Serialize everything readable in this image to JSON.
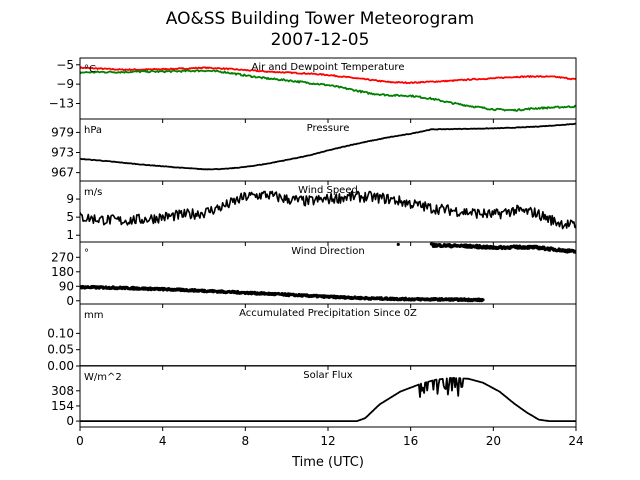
{
  "figure": {
    "title_line1": "AO&SS Building Tower Meteorogram",
    "title_line2": "2007-12-05",
    "xlabel": "Time (UTC)",
    "xlim": [
      0,
      24
    ],
    "xticks": [
      0,
      4,
      8,
      12,
      16,
      20,
      24
    ],
    "xtick_labels": [
      "0",
      "4",
      "8",
      "12",
      "16",
      "20",
      "24"
    ]
  },
  "chart_data": [
    {
      "type": "line",
      "title": "Air and Dewpoint Temperature",
      "unit": "°C",
      "ylim": [
        -16.2,
        -3.6
      ],
      "yticks": [
        -5,
        -9,
        -13
      ],
      "ytick_labels": [
        "−5",
        "−9",
        "−13"
      ],
      "series": [
        {
          "color": "#ff0000",
          "jitter": 0.12,
          "x": [
            0,
            1,
            2,
            3,
            4,
            5,
            6,
            7,
            8,
            9,
            10,
            11,
            12,
            13,
            14,
            15,
            16,
            17,
            18,
            19,
            20,
            21,
            22,
            23,
            24
          ],
          "y": [
            -5.6,
            -5.8,
            -6.0,
            -6.0,
            -5.9,
            -5.8,
            -5.6,
            -5.8,
            -6.1,
            -6.4,
            -6.6,
            -6.8,
            -7.1,
            -7.6,
            -8.1,
            -8.6,
            -8.7,
            -8.5,
            -8.3,
            -8.0,
            -7.8,
            -7.5,
            -7.4,
            -7.5,
            -8.0
          ]
        },
        {
          "color": "#008000",
          "jitter": 0.18,
          "x": [
            0,
            1,
            2,
            3,
            4,
            5,
            6,
            7,
            8,
            9,
            10,
            11,
            12,
            13,
            14,
            15,
            16,
            17,
            18,
            19,
            20,
            21,
            22,
            23,
            24
          ],
          "y": [
            -6.6,
            -6.5,
            -6.5,
            -6.4,
            -6.4,
            -6.3,
            -6.2,
            -6.5,
            -7.2,
            -7.8,
            -8.2,
            -8.7,
            -9.2,
            -10.0,
            -10.9,
            -11.3,
            -11.4,
            -12.0,
            -12.9,
            -13.6,
            -14.2,
            -14.4,
            -14.0,
            -13.8,
            -13.6
          ]
        }
      ]
    },
    {
      "type": "line",
      "title": "Pressure",
      "unit": "hPa",
      "ylim": [
        964.5,
        983
      ],
      "yticks": [
        979,
        973,
        967
      ],
      "ytick_labels": [
        "979",
        "973",
        "967"
      ],
      "series": [
        {
          "color": "#000000",
          "jitter": 0.08,
          "x": [
            0,
            1,
            2,
            3,
            4,
            5,
            6,
            7,
            8,
            9,
            10,
            11,
            12,
            13,
            14,
            15,
            16,
            17,
            18,
            19,
            20,
            21,
            22,
            23,
            24
          ],
          "y": [
            971.1,
            970.6,
            970.0,
            969.4,
            968.9,
            968.4,
            968.0,
            968.1,
            968.7,
            969.6,
            970.8,
            972.0,
            973.6,
            975.1,
            976.4,
            977.6,
            978.6,
            979.9,
            980.0,
            980.1,
            980.2,
            980.4,
            980.7,
            981.1,
            981.6
          ]
        }
      ]
    },
    {
      "type": "line",
      "title": "Wind Speed",
      "unit": "m/s",
      "ylim": [
        -0.5,
        13
      ],
      "yticks": [
        9,
        5,
        1
      ],
      "ytick_labels": [
        "9",
        "5",
        "1"
      ],
      "series": [
        {
          "color": "#000000",
          "jitter": 1.2,
          "x": [
            0,
            1,
            2,
            3,
            4,
            5,
            6,
            7,
            8,
            9,
            10,
            11,
            12,
            13,
            14,
            15,
            16,
            17,
            18,
            19,
            20,
            21,
            22,
            23,
            24
          ],
          "y": [
            5.0,
            4.5,
            4.2,
            4.5,
            5.0,
            5.5,
            6.0,
            7.5,
            9.5,
            10.0,
            9.0,
            8.5,
            9.0,
            9.5,
            9.5,
            9.0,
            8.0,
            7.0,
            6.5,
            6.0,
            5.5,
            6.5,
            6.0,
            4.0,
            3.0
          ]
        }
      ]
    },
    {
      "type": "scatter",
      "title": "Wind Direction",
      "unit": "°",
      "ylim": [
        -20,
        365
      ],
      "yticks": [
        270,
        180,
        90,
        0
      ],
      "ytick_labels": [
        "270",
        "180",
        "90",
        "0"
      ],
      "series": [
        {
          "color": "#000000",
          "jitter": 6,
          "x_start": 0,
          "x_end": 19.5,
          "x": [
            0,
            2,
            4,
            6,
            8,
            10,
            12,
            14,
            16,
            18,
            19.5
          ],
          "y": [
            85,
            80,
            72,
            62,
            50,
            38,
            25,
            15,
            10,
            8,
            5
          ]
        },
        {
          "color": "#000000",
          "jitter": 8,
          "x_start": 17,
          "x_end": 24,
          "x": [
            17,
            18,
            19,
            20,
            21,
            22,
            23,
            24
          ],
          "y": [
            345,
            342,
            338,
            330,
            333,
            332,
            318,
            305
          ]
        },
        {
          "color": "#000000",
          "jitter": 0,
          "points_only": true,
          "x": [
            15.4
          ],
          "y": [
            350
          ]
        }
      ]
    },
    {
      "type": "line",
      "title": "Accumulated Precipitation Since 0Z",
      "unit": "mm",
      "ylim": [
        0,
        0.19
      ],
      "yticks": [
        0.1,
        0.05,
        0.0
      ],
      "ytick_labels": [
        "0.10",
        "0.05",
        "0.00"
      ],
      "series": [
        {
          "color": "#000000",
          "jitter": 0,
          "x": [
            0,
            24
          ],
          "y": [
            0,
            0
          ]
        }
      ]
    },
    {
      "type": "line",
      "title": "Solar Flux",
      "unit": "W/m^2",
      "ylim": [
        -60,
        560
      ],
      "yticks": [
        308,
        154,
        0
      ],
      "ytick_labels": [
        "308",
        "154",
        "0"
      ],
      "series": [
        {
          "color": "#000000",
          "jitter": 0,
          "spiky": [
            16.2,
            18.6
          ],
          "x": [
            0,
            13.4,
            13.8,
            14.5,
            15.5,
            16.5,
            17.2,
            18.0,
            18.8,
            19.5,
            20.3,
            21.0,
            21.6,
            22.2,
            22.7,
            24
          ],
          "y": [
            0,
            0,
            30,
            170,
            300,
            380,
            420,
            440,
            430,
            390,
            300,
            180,
            90,
            15,
            0,
            0
          ]
        }
      ]
    }
  ]
}
